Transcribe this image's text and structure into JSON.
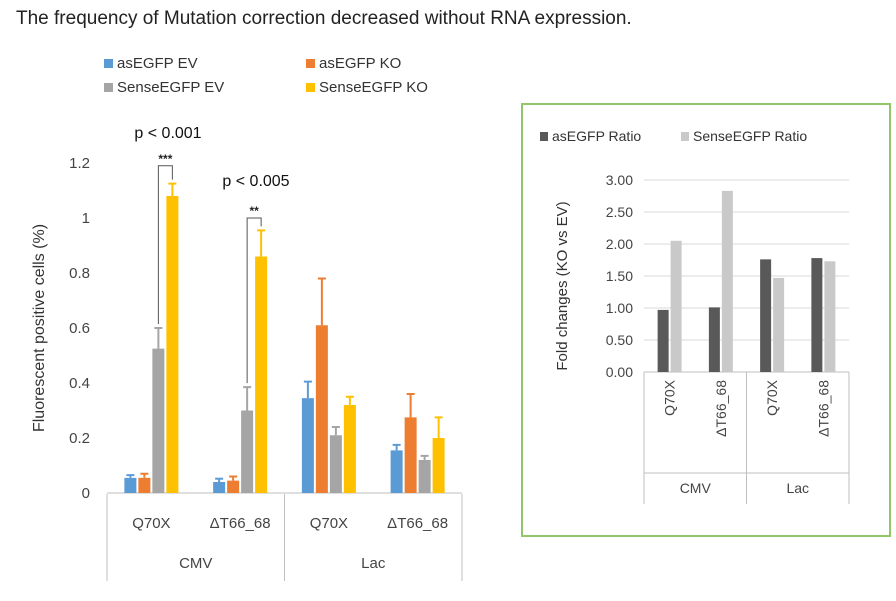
{
  "title": "The frequency of Mutation correction decreased without  RNA expression.",
  "chart_data": [
    {
      "type": "bar",
      "ylabel": "Fluorescent positive cells (%)",
      "ylim": [
        0,
        1.2
      ],
      "yticks": [
        "0",
        "0.2",
        "0.4",
        "0.6",
        "0.8",
        "1",
        "1.2"
      ],
      "groups": [
        {
          "label": "CMV",
          "categories": [
            "Q70X",
            "ΔT66_68"
          ]
        },
        {
          "label": "Lac",
          "categories": [
            "Q70X",
            "ΔT66_68"
          ]
        }
      ],
      "series": [
        {
          "name": "asEGFP EV",
          "color": "#5b9bd5",
          "values": [
            0.055,
            0.04,
            0.345,
            0.155
          ],
          "errors": [
            0.01,
            0.012,
            0.06,
            0.02
          ]
        },
        {
          "name": "asEGFP KO",
          "color": "#ed7d31",
          "values": [
            0.055,
            0.045,
            0.61,
            0.275
          ],
          "errors": [
            0.015,
            0.015,
            0.17,
            0.085
          ]
        },
        {
          "name": "SenseEGFP EV",
          "color": "#a5a5a5",
          "values": [
            0.525,
            0.3,
            0.21,
            0.12
          ],
          "errors": [
            0.075,
            0.085,
            0.03,
            0.015
          ]
        },
        {
          "name": "SenseEGFP KO",
          "color": "#ffc000",
          "values": [
            1.08,
            0.86,
            0.32,
            0.2
          ],
          "errors": [
            0.045,
            0.095,
            0.03,
            0.075
          ]
        }
      ],
      "annotations": [
        {
          "text": "p < 0.001",
          "stars": "***",
          "group": 0
        },
        {
          "text": "p < 0.005",
          "stars": "**",
          "group": 1
        }
      ]
    },
    {
      "type": "bar",
      "ylabel": "Fold changes (KO vs EV)",
      "ylim": [
        0,
        3.0
      ],
      "yticks": [
        "0.00",
        "0.50",
        "1.00",
        "1.50",
        "2.00",
        "2.50",
        "3.00"
      ],
      "groups": [
        {
          "label": "CMV",
          "categories": [
            "Q70X",
            "ΔT66_68"
          ]
        },
        {
          "label": "Lac",
          "categories": [
            "Q70X",
            "ΔT66_68"
          ]
        }
      ],
      "series": [
        {
          "name": "asEGFP Ratio",
          "color": "#595959",
          "values": [
            0.97,
            1.01,
            1.76,
            1.78
          ]
        },
        {
          "name": "SenseEGFP Ratio",
          "color": "#c9c9c9",
          "values": [
            2.05,
            2.83,
            1.47,
            1.73
          ]
        }
      ]
    }
  ]
}
